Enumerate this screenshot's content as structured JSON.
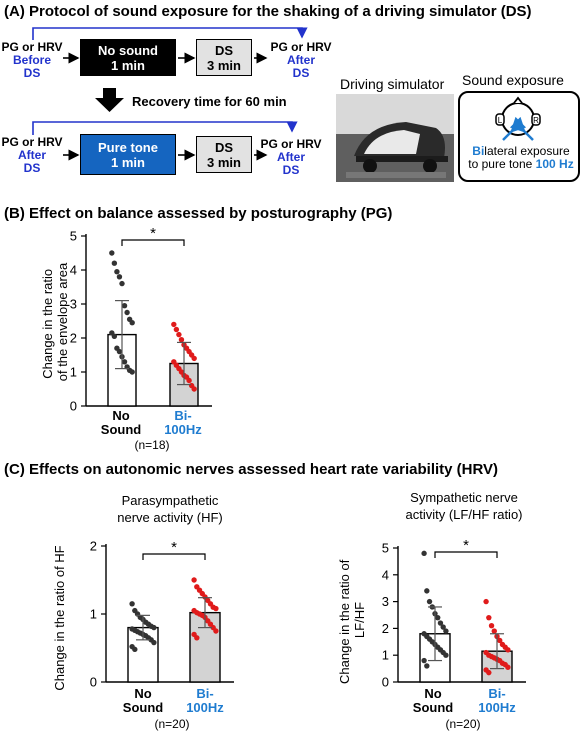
{
  "colors": {
    "blue_text": "#2233cc",
    "blue_box": "#1565c0",
    "blue_label": "#1f7cd0",
    "red_point": "#e01b1b",
    "dark_point": "#333333",
    "bar_gray": "#d3d3d3"
  },
  "sectionA": {
    "title": "(A) Protocol of sound exposure for the shaking of a driving simulator (DS)",
    "row1": {
      "pre_l1": "PG or HRV",
      "pre_l2": "Before",
      "pre_l3": "DS",
      "box1_l1": "No sound",
      "box1_l2": "1 min",
      "box2_l1": "DS",
      "box2_l2": "3 min",
      "post_l1": "PG or HRV",
      "post_l2": "After",
      "post_l3": "DS"
    },
    "recovery": "Recovery time for 60 min",
    "row2": {
      "pre_l1": "PG or HRV",
      "pre_l2": "After",
      "pre_l3": "DS",
      "box1_l1": "Pure tone",
      "box1_l2": "1 min",
      "box2_l1": "DS",
      "box2_l2": "3 min",
      "post_l1": "PG or HRV",
      "post_l2": "After",
      "post_l3": "DS"
    },
    "sim_label": "Driving simulator",
    "sound_label": "Sound exposure",
    "head_left": "L",
    "head_right": "R",
    "exposure_bi": "Bi",
    "exposure_rest": "lateral exposure",
    "exposure_l2a": "to pure tone ",
    "exposure_l2b": "100 Hz"
  },
  "sectionB": {
    "title": "(B) Effect on balance assessed by posturography (PG)",
    "n": "(n=18)"
  },
  "sectionC": {
    "title": "(C) Effects on autonomic nerves assessed heart rate variability (HRV)",
    "hf_title_l1": "Parasympathetic",
    "hf_title_l2": "nerve activity (HF)",
    "lfhf_title_l1": "Sympathetic nerve",
    "lfhf_title_l2": "activity (LF/HF ratio)",
    "hf_n": "(n=20)",
    "lfhf_n": "(n=20)"
  },
  "chart_data": [
    {
      "type": "bar",
      "categories": [
        "No Sound",
        "Bi-100Hz"
      ],
      "ylabel": "Change in the ratio of the envelope area",
      "ylim": [
        0,
        5
      ],
      "yticks": [
        "0",
        "1",
        "2",
        "3",
        "4",
        "5"
      ],
      "significance": "*",
      "series": [
        {
          "values": [
            2.1,
            1.25
          ],
          "sd": [
            1.0,
            0.62
          ],
          "points": [
            [
              4.5,
              4.2,
              3.95,
              3.8,
              3.6,
              2.95,
              2.75,
              2.55,
              2.45,
              2.15,
              2.05,
              1.7,
              1.6,
              1.45,
              1.3,
              1.15,
              1.05,
              1.0
            ],
            [
              2.4,
              2.25,
              2.1,
              1.95,
              1.8,
              1.7,
              1.6,
              1.5,
              1.4,
              1.3,
              1.2,
              1.1,
              1.0,
              0.9,
              0.85,
              0.75,
              0.6,
              0.5
            ]
          ]
        }
      ]
    },
    {
      "type": "bar",
      "title": "Parasympathetic nerve activity (HF)",
      "categories": [
        "No Sound",
        "Bi-100Hz"
      ],
      "ylabel": "Change in the ratio of HF",
      "ylim": [
        0,
        2
      ],
      "yticks": [
        "0",
        "1",
        "2"
      ],
      "significance": "*",
      "series": [
        {
          "values": [
            0.8,
            1.02
          ],
          "sd": [
            0.18,
            0.22
          ],
          "points": [
            [
              1.15,
              1.05,
              1.0,
              0.95,
              0.92,
              0.88,
              0.85,
              0.82,
              0.8,
              0.78,
              0.76,
              0.74,
              0.72,
              0.7,
              0.68,
              0.65,
              0.62,
              0.58,
              0.52,
              0.48
            ],
            [
              1.5,
              1.4,
              1.35,
              1.3,
              1.25,
              1.2,
              1.15,
              1.1,
              1.08,
              1.05,
              1.02,
              1.0,
              0.98,
              0.95,
              0.9,
              0.85,
              0.8,
              0.75,
              0.7,
              0.65
            ]
          ]
        }
      ]
    },
    {
      "type": "bar",
      "title": "Sympathetic nerve activity (LF/HF ratio)",
      "categories": [
        "No Sound",
        "Bi-100Hz"
      ],
      "ylabel": "Change in the ratio of LF/HF",
      "ylim": [
        0,
        5
      ],
      "yticks": [
        "0",
        "1",
        "2",
        "3",
        "4",
        "5"
      ],
      "significance": "*",
      "series": [
        {
          "values": [
            1.8,
            1.15
          ],
          "sd": [
            1.0,
            0.65
          ],
          "points": [
            [
              4.8,
              3.4,
              3.0,
              2.8,
              2.55,
              2.4,
              2.2,
              2.05,
              1.9,
              1.8,
              1.7,
              1.6,
              1.5,
              1.4,
              1.3,
              1.2,
              1.1,
              1.0,
              0.8,
              0.6
            ],
            [
              3.0,
              2.4,
              2.1,
              1.9,
              1.7,
              1.55,
              1.4,
              1.3,
              1.2,
              1.1,
              1.0,
              0.95,
              0.9,
              0.85,
              0.8,
              0.7,
              0.65,
              0.55,
              0.45,
              0.35
            ]
          ]
        }
      ]
    }
  ]
}
